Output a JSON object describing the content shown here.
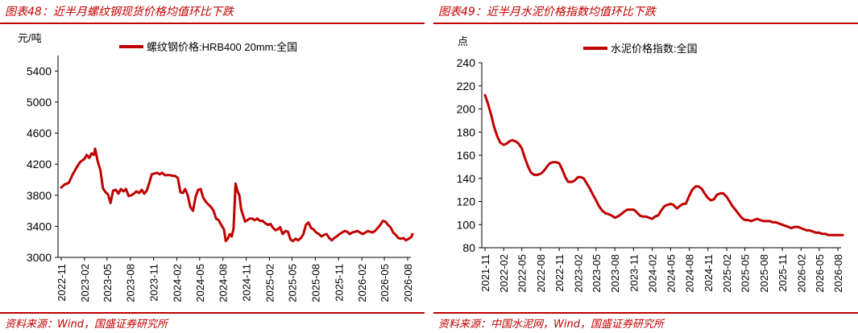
{
  "panels": [
    {
      "figure_title": "图表48：近半月螺纹钢现货价格均值环比下跌",
      "source": "资料来源：Wind，国盛证券研究所",
      "line_color": "#c00000",
      "rule_color": "#c00000",
      "chart_data": {
        "type": "line",
        "title": "",
        "ylabel": "元/吨",
        "xlabel": "",
        "ylim": [
          3000,
          5600
        ],
        "yticks": [
          3000,
          3400,
          3800,
          4200,
          4600,
          5000,
          5400
        ],
        "xtick_labels": [
          "2022-11",
          "2023-02",
          "2023-05",
          "2023-08",
          "2023-11",
          "2024-02",
          "2024-05",
          "2024-08",
          "2024-11",
          "2025-02",
          "2025-05",
          "2025-08",
          "2025-11",
          "2026-02",
          "2026-05",
          "2026-08"
        ],
        "legend": {
          "position": "top-center"
        },
        "grid": false,
        "series": [
          {
            "name": "螺纹钢价格:HRB400 20mm:全国",
            "x": [
              "2022-11-01",
              "2022-11-15",
              "2022-12-01",
              "2022-12-15",
              "2023-01-01",
              "2023-01-15",
              "2023-02-01",
              "2023-02-10",
              "2023-02-20",
              "2023-03-01",
              "2023-03-10",
              "2023-03-15",
              "2023-03-25",
              "2023-04-05",
              "2023-04-15",
              "2023-04-25",
              "2023-05-05",
              "2023-05-15",
              "2023-05-25",
              "2023-06-05",
              "2023-06-15",
              "2023-06-25",
              "2023-07-05",
              "2023-07-15",
              "2023-07-25",
              "2023-08-05",
              "2023-08-15",
              "2023-08-25",
              "2023-09-05",
              "2023-09-15",
              "2023-09-25",
              "2023-10-05",
              "2023-10-15",
              "2023-10-25",
              "2023-11-05",
              "2023-11-15",
              "2023-11-25",
              "2023-12-05",
              "2023-12-15",
              "2023-12-25",
              "2024-01-05",
              "2024-01-15",
              "2024-01-25",
              "2024-02-05",
              "2024-02-15",
              "2024-02-25",
              "2024-03-05",
              "2024-03-15",
              "2024-03-25",
              "2024-04-05",
              "2024-04-15",
              "2024-04-25",
              "2024-05-05",
              "2024-05-15",
              "2024-05-25",
              "2024-06-05",
              "2024-06-15",
              "2024-06-25",
              "2024-07-05",
              "2024-07-15",
              "2024-07-25",
              "2024-08-05",
              "2024-08-12",
              "2024-08-20",
              "2024-08-28",
              "2024-09-05",
              "2024-09-12",
              "2024-09-20",
              "2024-09-28",
              "2024-10-05",
              "2024-10-12",
              "2024-10-20",
              "2024-10-28",
              "2024-11-05",
              "2024-11-15",
              "2024-11-25",
              "2024-12-05",
              "2024-12-15",
              "2024-12-25",
              "2025-01-05",
              "2025-01-15",
              "2025-01-25",
              "2025-02-05",
              "2025-02-15",
              "2025-02-25",
              "2025-03-05",
              "2025-03-15",
              "2025-03-25",
              "2025-04-05",
              "2025-04-15",
              "2025-04-25",
              "2025-05-05",
              "2025-05-15",
              "2025-05-25",
              "2025-06-05",
              "2025-06-15",
              "2025-06-25",
              "2025-07-05",
              "2025-07-15",
              "2025-07-25",
              "2025-08-05",
              "2025-08-15",
              "2025-08-25",
              "2025-09-05",
              "2025-09-15",
              "2025-09-25",
              "2025-10-05",
              "2025-10-15",
              "2025-10-25",
              "2025-11-05",
              "2025-11-15",
              "2025-11-25",
              "2025-12-05",
              "2025-12-15",
              "2025-12-25",
              "2026-01-05",
              "2026-01-15",
              "2026-01-25",
              "2026-02-05",
              "2026-02-15",
              "2026-02-25",
              "2026-03-05",
              "2026-03-15",
              "2026-03-25",
              "2026-04-05",
              "2026-04-15",
              "2026-04-25",
              "2026-05-05",
              "2026-05-15",
              "2026-05-25",
              "2026-06-05",
              "2026-06-15",
              "2026-06-25",
              "2026-07-05",
              "2026-07-15",
              "2026-07-25",
              "2026-08-05",
              "2026-08-15",
              "2026-08-20"
            ],
            "y": [
              3900,
              3940,
              3960,
              4060,
              4160,
              4230,
              4270,
              4320,
              4280,
              4340,
              4320,
              4400,
              4240,
              4120,
              3890,
              3840,
              3810,
              3700,
              3860,
              3870,
              3820,
              3880,
              3850,
              3880,
              3790,
              3800,
              3820,
              3850,
              3830,
              3870,
              3820,
              3860,
              3960,
              4070,
              4080,
              4090,
              4070,
              4090,
              4060,
              4060,
              4060,
              4050,
              4050,
              4020,
              3840,
              3830,
              3880,
              3800,
              3650,
              3600,
              3780,
              3870,
              3880,
              3770,
              3720,
              3680,
              3650,
              3600,
              3500,
              3480,
              3420,
              3360,
              3210,
              3240,
              3300,
              3270,
              3370,
              3950,
              3850,
              3800,
              3620,
              3540,
              3460,
              3480,
              3500,
              3500,
              3480,
              3500,
              3470,
              3470,
              3440,
              3420,
              3430,
              3380,
              3350,
              3360,
              3390,
              3300,
              3340,
              3330,
              3230,
              3210,
              3240,
              3220,
              3250,
              3300,
              3420,
              3450,
              3380,
              3360,
              3320,
              3300,
              3270,
              3290,
              3300,
              3250,
              3220,
              3250,
              3270,
              3300,
              3320,
              3340,
              3330,
              3300,
              3320,
              3330,
              3340,
              3320,
              3300,
              3320,
              3340,
              3330,
              3320,
              3340,
              3380,
              3420,
              3470,
              3460,
              3420,
              3390,
              3320,
              3290,
              3250,
              3240,
              3250,
              3220,
              3240,
              3260,
              3300
            ]
          }
        ]
      }
    },
    {
      "figure_title": "图表49：近半月水泥价格指数均值环比下跌",
      "source": "资料来源：中国水泥网，Wind，国盛证券研究所",
      "line_color": "#c00000",
      "rule_color": "#c00000",
      "chart_data": {
        "type": "line",
        "title": "",
        "ylabel": "点",
        "xlabel": "",
        "ylim": [
          80,
          240
        ],
        "yticks": [
          80,
          100,
          120,
          140,
          160,
          180,
          200,
          220,
          240
        ],
        "xtick_labels": [
          "2021-11",
          "2022-02",
          "2022-05",
          "2022-08",
          "2022-11",
          "2023-02",
          "2023-05",
          "2023-08",
          "2023-11",
          "2024-02",
          "2024-05",
          "2024-08",
          "2024-11",
          "2025-02",
          "2025-05",
          "2025-08",
          "2025-11",
          "2026-02",
          "2026-05",
          "2026-08"
        ],
        "legend": {
          "position": "top-center"
        },
        "grid": false,
        "series": [
          {
            "name": "水泥价格指数:全国",
            "x": [
              "2021-11-01",
              "2021-11-15",
              "2021-12-01",
              "2021-12-15",
              "2022-01-01",
              "2022-01-15",
              "2022-02-01",
              "2022-02-15",
              "2022-03-01",
              "2022-03-15",
              "2022-04-01",
              "2022-04-15",
              "2022-05-01",
              "2022-05-15",
              "2022-06-01",
              "2022-06-15",
              "2022-07-01",
              "2022-07-15",
              "2022-08-01",
              "2022-08-15",
              "2022-09-01",
              "2022-09-15",
              "2022-10-01",
              "2022-10-15",
              "2022-11-01",
              "2022-11-15",
              "2022-12-01",
              "2022-12-15",
              "2023-01-01",
              "2023-01-15",
              "2023-02-01",
              "2023-02-15",
              "2023-03-01",
              "2023-03-15",
              "2023-04-01",
              "2023-04-15",
              "2023-05-01",
              "2023-05-15",
              "2023-06-01",
              "2023-06-15",
              "2023-07-01",
              "2023-07-15",
              "2023-08-01",
              "2023-08-15",
              "2023-09-01",
              "2023-09-15",
              "2023-10-01",
              "2023-10-15",
              "2023-11-01",
              "2023-11-15",
              "2023-12-01",
              "2023-12-15",
              "2024-01-01",
              "2024-01-15",
              "2024-02-01",
              "2024-02-15",
              "2024-03-01",
              "2024-03-15",
              "2024-04-01",
              "2024-04-15",
              "2024-05-01",
              "2024-05-15",
              "2024-06-01",
              "2024-06-15",
              "2024-07-01",
              "2024-07-15",
              "2024-08-01",
              "2024-08-15",
              "2024-09-01",
              "2024-09-15",
              "2024-10-01",
              "2024-10-15",
              "2024-11-01",
              "2024-11-15",
              "2024-12-01",
              "2024-12-15",
              "2025-01-01",
              "2025-01-15",
              "2025-02-01",
              "2025-02-15",
              "2025-03-01",
              "2025-03-15",
              "2025-04-01",
              "2025-04-15",
              "2025-05-01",
              "2025-05-15",
              "2025-06-01",
              "2025-06-15",
              "2025-07-01",
              "2025-07-15",
              "2025-08-01",
              "2025-08-15",
              "2025-09-01",
              "2025-09-15",
              "2025-10-01",
              "2025-10-15",
              "2025-11-01",
              "2025-11-15",
              "2025-12-01",
              "2025-12-15",
              "2026-01-01",
              "2026-01-15",
              "2026-02-01",
              "2026-02-15",
              "2026-03-01",
              "2026-03-15",
              "2026-04-01",
              "2026-04-15",
              "2026-05-01",
              "2026-05-15",
              "2026-06-01",
              "2026-06-15",
              "2026-07-01",
              "2026-07-15",
              "2026-08-01",
              "2026-08-15",
              "2026-08-25"
            ],
            "y": [
              212,
              205,
              195,
              185,
              176,
              171,
              169,
              170,
              172,
              173,
              172,
              170,
              166,
              158,
              150,
              145,
              143,
              143,
              144,
              146,
              150,
              153,
              154,
              154,
              153,
              148,
              141,
              137,
              137,
              138,
              141,
              141,
              140,
              136,
              131,
              126,
              121,
              116,
              112,
              110,
              109,
              108,
              106,
              107,
              109,
              111,
              113,
              113,
              113,
              111,
              108,
              107,
              107,
              106,
              105,
              107,
              108,
              112,
              116,
              117,
              118,
              117,
              114,
              116,
              118,
              118,
              125,
              130,
              133,
              133,
              131,
              127,
              123,
              121,
              122,
              126,
              127,
              127,
              124,
              120,
              116,
              113,
              109,
              106,
              104,
              104,
              103,
              104,
              105,
              104,
              103,
              103,
              103,
              102,
              102,
              101,
              100,
              99,
              98,
              97,
              98,
              98,
              97,
              96,
              95,
              95,
              94,
              93,
              93,
              92,
              92,
              91,
              91,
              91,
              91,
              91,
              91
            ]
          }
        ]
      }
    }
  ]
}
